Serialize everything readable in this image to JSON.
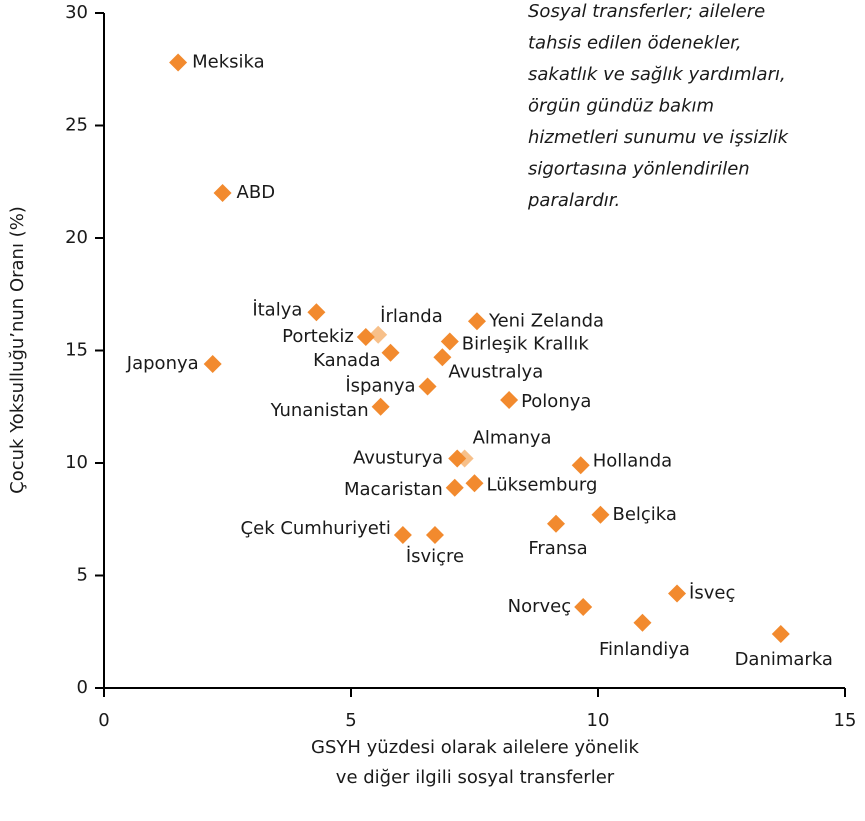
{
  "chart_data": {
    "type": "scatter",
    "annotation": [
      "Sosyal transferler; ailelere",
      "tahsis edilen ödenekler,",
      "sakatlık ve sağlık yardımları,",
      "örgün gündüz bakım",
      "hizmetleri sunumu ve işsizlik",
      "sigortasına yönlendirilen",
      "paralardır."
    ],
    "x_label": [
      "GSYH yüzdesi olarak ailelere yönelik",
      "ve diğer ilgili sosyal transferler"
    ],
    "y_label": "Çocuk Yoksulluğu’nun Oranı (%)",
    "xlim": [
      0,
      15
    ],
    "xticks": [
      0,
      5,
      10,
      15
    ],
    "ylim": [
      0,
      30
    ],
    "yticks": [
      0,
      5,
      10,
      15,
      20,
      25,
      30
    ],
    "grid": false,
    "series": [
      {
        "name": "Ülkeler",
        "color": "#f28a2e",
        "labels": [
          "Meksika",
          "ABD",
          "İtalya",
          "İrlanda",
          "Portekiz",
          "Kanada",
          "Yeni Zelanda",
          "Birleşik Krallık",
          "Avustralya",
          "Japonya",
          "İspanya",
          "Polonya",
          "Yunanistan",
          "Almanya",
          "Avusturya",
          "Hollanda",
          "Macaristan",
          "Lüksemburg",
          "Belçika",
          "Fransa",
          "Çek Cumhuriyeti",
          "İsviçre",
          "İsveç",
          "Norveç",
          "Finlandiya",
          "Danimarka"
        ],
        "x": [
          1.5,
          2.4,
          4.3,
          5.55,
          5.3,
          5.8,
          7.55,
          7.0,
          6.85,
          2.2,
          6.55,
          8.2,
          5.6,
          7.3,
          7.15,
          9.65,
          7.1,
          7.5,
          10.05,
          9.15,
          6.05,
          6.7,
          11.6,
          9.7,
          10.9,
          13.7
        ],
        "values": [
          27.8,
          22.0,
          16.7,
          15.7,
          15.6,
          14.9,
          16.3,
          15.4,
          14.7,
          14.4,
          13.4,
          12.8,
          12.5,
          10.2,
          10.2,
          9.9,
          8.9,
          9.1,
          7.7,
          7.3,
          6.8,
          6.8,
          4.2,
          3.6,
          2.9,
          2.4
        ],
        "colors": [
          "#f28a2e",
          "#f28a2e",
          "#f28a2e",
          "#f7c08a",
          "#f28a2e",
          "#f28a2e",
          "#f28a2e",
          "#f28a2e",
          "#f28a2e",
          "#f28a2e",
          "#f28a2e",
          "#f28a2e",
          "#f28a2e",
          "#f7c08a",
          "#f28a2e",
          "#f28a2e",
          "#f28a2e",
          "#f28a2e",
          "#f28a2e",
          "#f28a2e",
          "#f28a2e",
          "#f28a2e",
          "#f28a2e",
          "#f28a2e",
          "#f28a2e",
          "#f28a2e"
        ]
      }
    ]
  }
}
